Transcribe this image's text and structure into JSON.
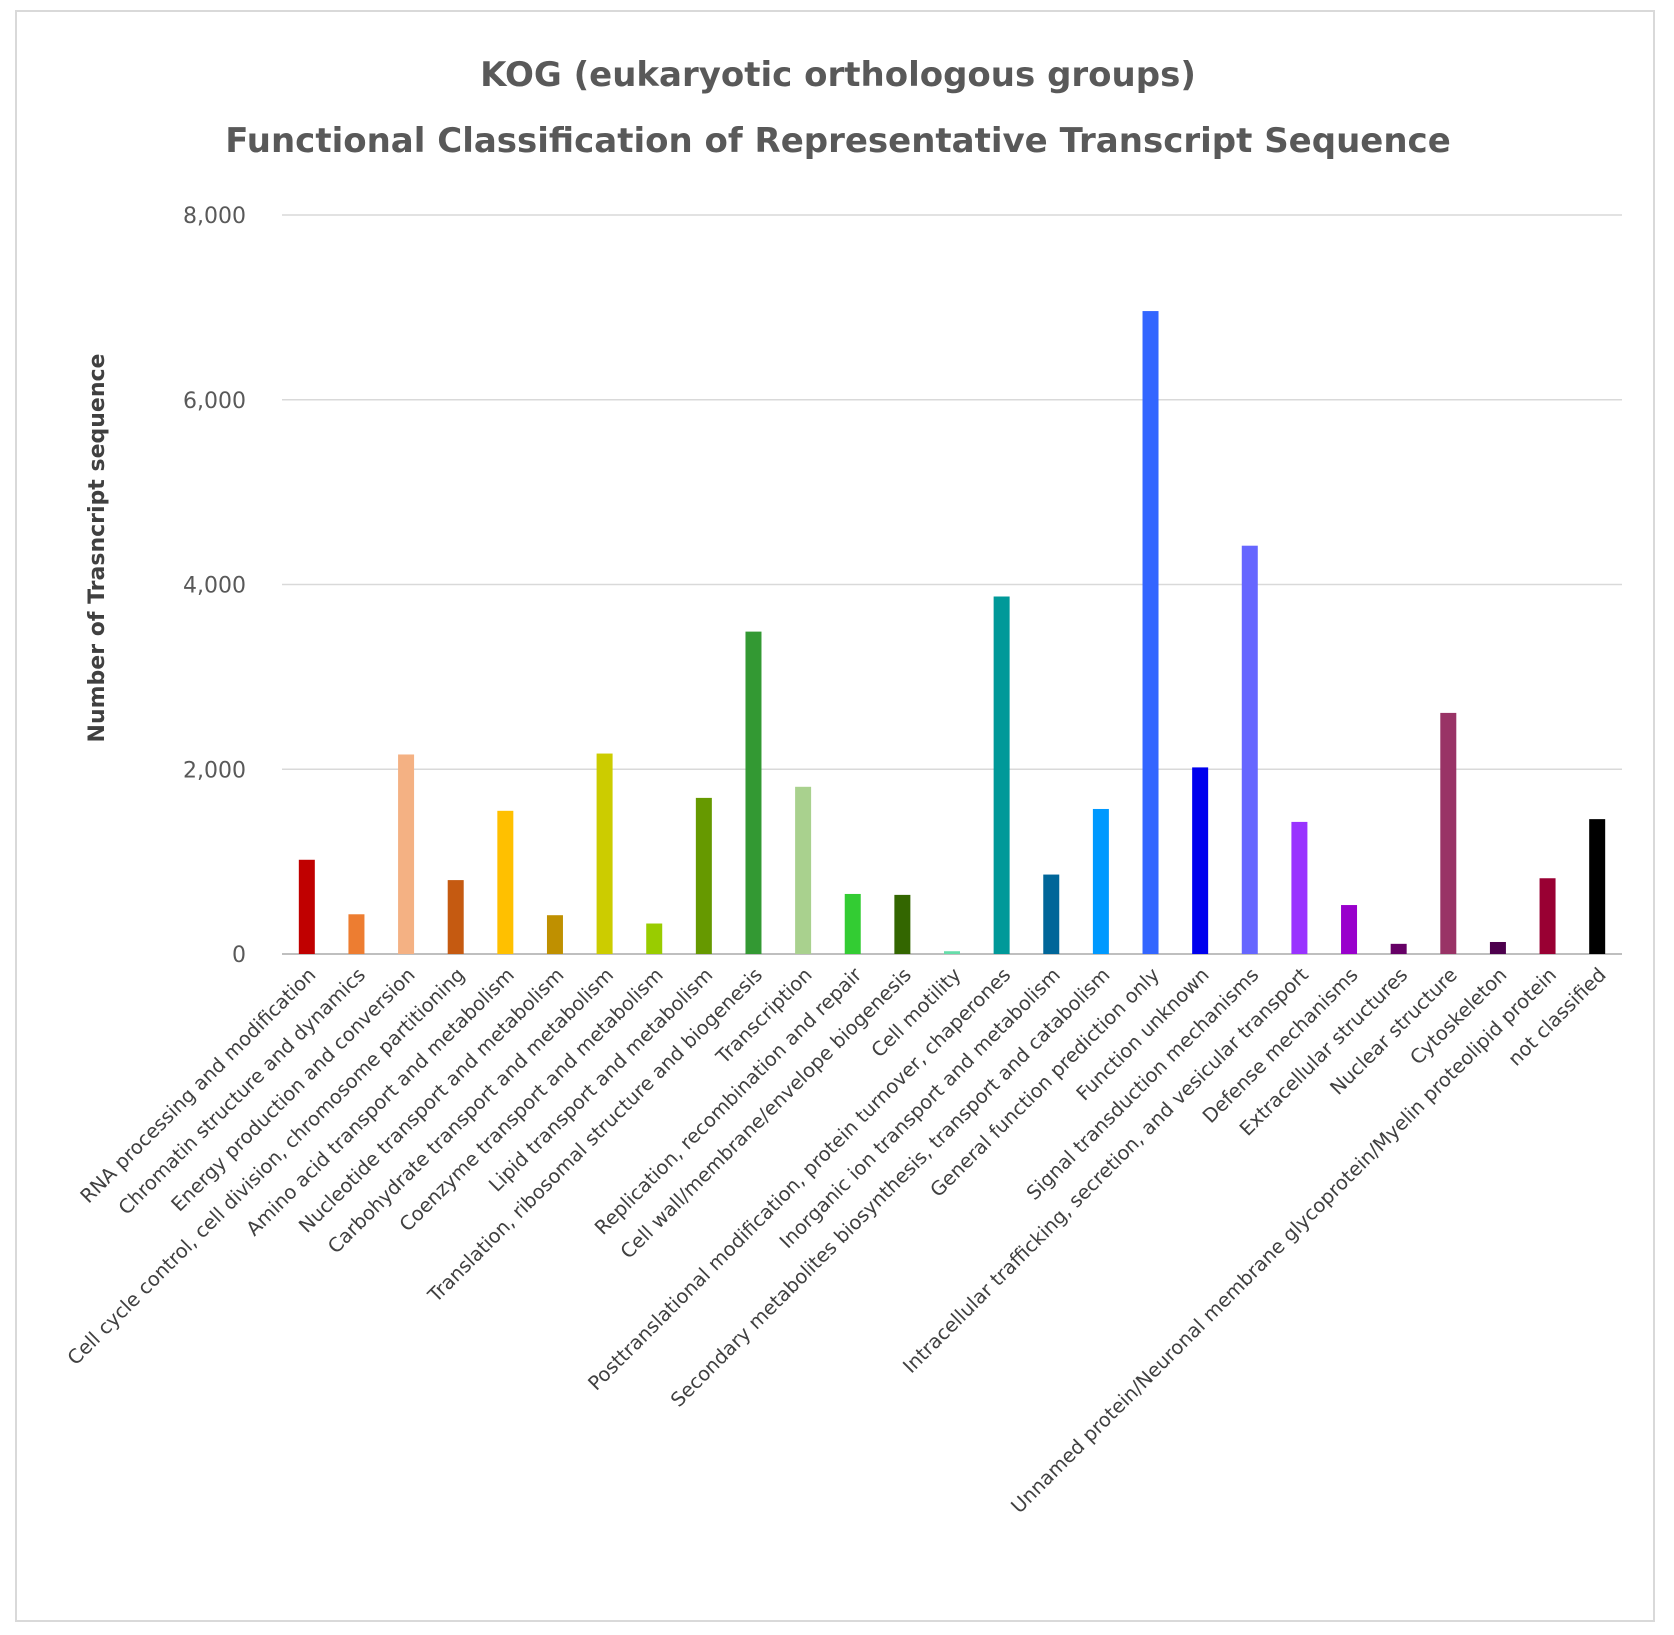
{
  "chart_data": {
    "type": "bar",
    "title": "KOG (eukaryotic orthologous groups)",
    "subtitle": "Functional Classification of Representative Transcript Sequence",
    "xlabel": "",
    "ylabel": "Number of Trasncript sequence",
    "ylim": [
      0,
      8000
    ],
    "yticks": [
      0,
      2000,
      4000,
      6000,
      8000
    ],
    "ytick_labels": [
      "0",
      "2,000",
      "4,000",
      "6,000",
      "8,000"
    ],
    "grid": true,
    "legend": "none",
    "categories": [
      "RNA processing and modification",
      "Chromatin structure and dynamics",
      "Energy production and conversion",
      "Cell cycle control, cell division, chromosome partitioning",
      "Amino acid transport and metabolism",
      "Nucleotide transport and metabolism",
      "Carbohydrate transport and metabolism",
      "Coenzyme transport and metabolism",
      "Lipid transport and metabolism",
      "Translation, ribosomal structure and biogenesis",
      "Transcription",
      "Replication, recombination and repair",
      "Cell wall/membrane/envelope biogenesis",
      "Cell motility",
      "Posttranslational modification, protein turnover, chaperones",
      "Inorganic ion transport and metabolism",
      "Secondary metabolites biosynthesis, transport and catabolism",
      "General function prediction only",
      "Function unknown",
      "Signal transduction mechanisms",
      "Intracellular trafficking, secretion, and vesicular transport",
      "Defense mechanisms",
      "Extracellular structures",
      "Nuclear structure",
      "Cytoskeleton",
      "Unnamed protein/Neuronal membrane glycoprotein/Myelin proteolipid protein",
      "not classified"
    ],
    "values": [
      1020,
      430,
      2160,
      800,
      1550,
      420,
      2170,
      330,
      1690,
      3490,
      1810,
      650,
      640,
      30,
      3870,
      860,
      1570,
      6960,
      2020,
      4420,
      1430,
      530,
      110,
      2610,
      130,
      820,
      1460
    ],
    "colors": [
      "#c00000",
      "#ed7d31",
      "#f4b183",
      "#c55a11",
      "#ffc000",
      "#bf9000",
      "#cccc00",
      "#99cc00",
      "#669900",
      "#339933",
      "#a9d18e",
      "#33cc33",
      "#336600",
      "#66ddaa",
      "#009999",
      "#006699",
      "#0099ff",
      "#3366ff",
      "#0000ee",
      "#6666ff",
      "#9933ff",
      "#9900cc",
      "#660066",
      "#993366",
      "#4d004d",
      "#990033",
      "#000000"
    ]
  }
}
